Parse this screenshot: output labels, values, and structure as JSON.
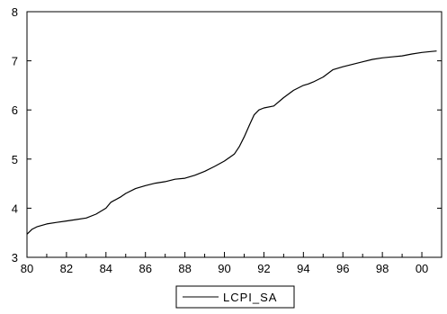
{
  "chart_data": {
    "type": "line",
    "title": "",
    "xlabel": "",
    "ylabel": "",
    "xlim": [
      1980,
      2001
    ],
    "ylim": [
      3,
      8
    ],
    "x_ticks": [
      "80",
      "82",
      "84",
      "86",
      "88",
      "90",
      "92",
      "94",
      "96",
      "98",
      "00"
    ],
    "y_ticks": [
      "3",
      "4",
      "5",
      "6",
      "7",
      "8"
    ],
    "grid": false,
    "legend": {
      "placement": "bottom-center",
      "entries": [
        "LCPI_SA"
      ]
    },
    "series": [
      {
        "name": "LCPI_SA",
        "color": "#000000",
        "x": [
          1980.0,
          1980.25,
          1980.5,
          1981.0,
          1981.5,
          1982.0,
          1982.5,
          1983.0,
          1983.5,
          1984.0,
          1984.25,
          1984.75,
          1985.0,
          1985.5,
          1986.0,
          1986.5,
          1987.0,
          1987.5,
          1988.0,
          1988.5,
          1989.0,
          1989.5,
          1990.0,
          1990.5,
          1990.75,
          1991.0,
          1991.25,
          1991.5,
          1991.75,
          1992.0,
          1992.5,
          1993.0,
          1993.5,
          1994.0,
          1994.25,
          1994.5,
          1995.0,
          1995.5,
          1996.0,
          1996.5,
          1997.0,
          1997.5,
          1998.0,
          1998.5,
          1999.0,
          1999.5,
          2000.0,
          2000.5,
          2000.75
        ],
        "y": [
          3.47,
          3.57,
          3.62,
          3.68,
          3.71,
          3.74,
          3.77,
          3.8,
          3.88,
          4.0,
          4.12,
          4.23,
          4.3,
          4.4,
          4.46,
          4.51,
          4.54,
          4.59,
          4.61,
          4.67,
          4.75,
          4.85,
          4.96,
          5.1,
          5.25,
          5.45,
          5.68,
          5.9,
          6.0,
          6.04,
          6.08,
          6.25,
          6.4,
          6.5,
          6.53,
          6.57,
          6.67,
          6.82,
          6.88,
          6.93,
          6.98,
          7.03,
          7.06,
          7.08,
          7.1,
          7.14,
          7.17,
          7.19,
          7.2
        ]
      }
    ]
  }
}
